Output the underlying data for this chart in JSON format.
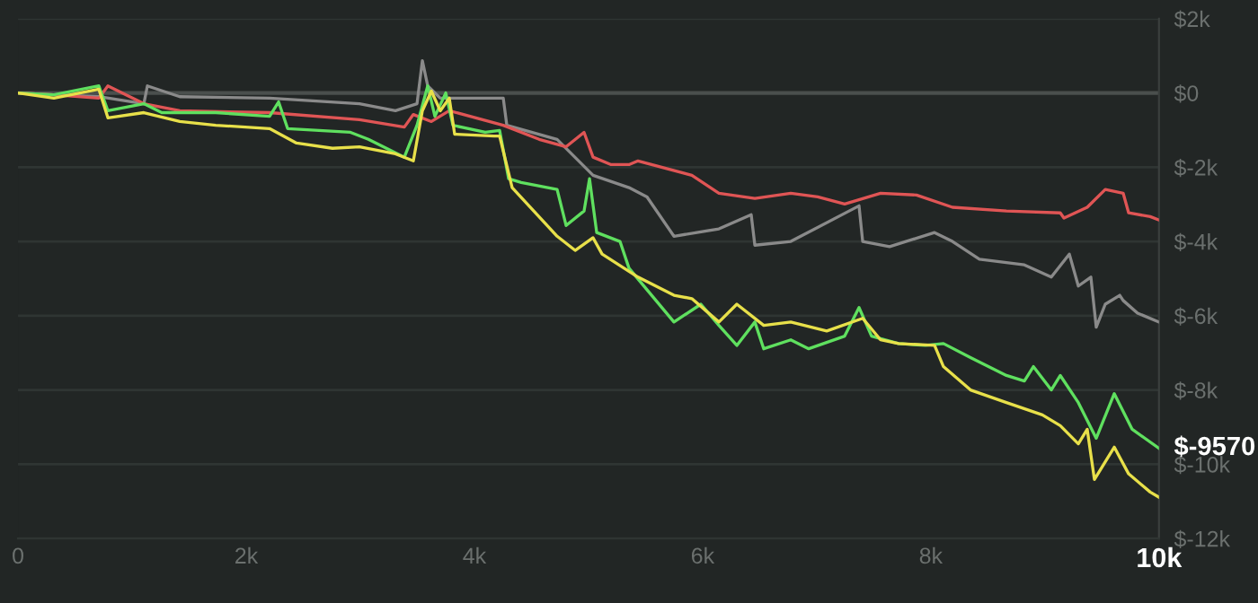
{
  "chart_data": {
    "type": "line",
    "xlim": [
      0,
      10000
    ],
    "ylim": [
      -12000,
      2000
    ],
    "xticks": [
      0,
      {
        "value": 2000,
        "label": "2k"
      },
      {
        "value": 4000,
        "label": "4k"
      },
      {
        "value": 6000,
        "label": "6k"
      },
      {
        "value": 8000,
        "label": "8k"
      },
      {
        "value": 10000,
        "label": "10k"
      }
    ],
    "yticks": [
      {
        "value": -12000,
        "label": "$-12k"
      },
      {
        "value": -10000,
        "label": "$-10k"
      },
      {
        "value": -8000,
        "label": "$-8k"
      },
      {
        "value": -6000,
        "label": "$-6k"
      },
      {
        "value": -4000,
        "label": "$-4k"
      },
      {
        "value": -2000,
        "label": "$-2k"
      },
      {
        "value": 0,
        "label": "$0"
      },
      {
        "value": 2000,
        "label": "$2k"
      }
    ],
    "grid": "y",
    "ref_lines": [
      {
        "axis": "y",
        "value": 0,
        "color": "#4a4f4d"
      }
    ],
    "annotations": [
      {
        "text": "$-9570",
        "x": 10000,
        "y": -9570
      }
    ],
    "series": [
      {
        "color": "#8a8a8a",
        "x": [
          0,
          315,
          709,
          1103,
          1134,
          1418,
          2205,
          2993,
          3308,
          3497,
          3544,
          3591,
          3701,
          3859,
          4253,
          4284,
          4725,
          5040,
          5355,
          5513,
          5749,
          6143,
          6426,
          6458,
          6773,
          7371,
          7403,
          7639,
          8033,
          8190,
          8426,
          8820,
          9056,
          9214,
          9293,
          9403,
          9450,
          9529,
          9656,
          9686,
          9812,
          10000
        ],
        "values": [
          0,
          -50,
          -100,
          -290,
          190,
          -100,
          -140,
          -290,
          -480,
          -290,
          870,
          190,
          -140,
          -140,
          -140,
          -870,
          -1250,
          -2220,
          -2550,
          -2800,
          -3860,
          -3660,
          -3280,
          -4100,
          -4000,
          -3040,
          -4000,
          -4140,
          -3760,
          -4000,
          -4480,
          -4630,
          -4960,
          -4340,
          -5200,
          -4960,
          -6310,
          -5690,
          -5450,
          -5590,
          -5930,
          -6170
        ]
      },
      {
        "color": "#e05555",
        "x": [
          0,
          315,
          709,
          788,
          1103,
          1418,
          2205,
          2993,
          3386,
          3465,
          3623,
          3780,
          4253,
          4568,
          4804,
          4961,
          5040,
          5198,
          5355,
          5434,
          5906,
          6143,
          6458,
          6773,
          7009,
          7245,
          7560,
          7875,
          8190,
          8663,
          9135,
          9167,
          9371,
          9529,
          9686,
          9734,
          9923,
          10000
        ],
        "values": [
          0,
          -50,
          -140,
          190,
          -290,
          -480,
          -530,
          -720,
          -920,
          -580,
          -770,
          -480,
          -870,
          -1250,
          -1450,
          -1060,
          -1730,
          -1930,
          -1930,
          -1830,
          -2220,
          -2700,
          -2840,
          -2700,
          -2800,
          -2990,
          -2700,
          -2750,
          -3080,
          -3180,
          -3230,
          -3370,
          -3080,
          -2600,
          -2700,
          -3230,
          -3330,
          -3420
        ]
      },
      {
        "color": "#5fe05f",
        "x": [
          0,
          315,
          709,
          788,
          1103,
          1260,
          1733,
          2205,
          2284,
          2363,
          2914,
          3071,
          3386,
          3497,
          3591,
          3654,
          3749,
          3812,
          4095,
          4221,
          4300,
          4410,
          4725,
          4804,
          4961,
          5009,
          5072,
          5276,
          5355,
          5749,
          5985,
          6143,
          6300,
          6458,
          6536,
          6773,
          6930,
          7245,
          7371,
          7481,
          7718,
          7954,
          8111,
          8348,
          8663,
          8820,
          8899,
          9056,
          9135,
          9293,
          9450,
          9608,
          9765,
          10000
        ],
        "values": [
          0,
          -50,
          190,
          -480,
          -290,
          -530,
          -530,
          -630,
          -240,
          -960,
          -1060,
          -1250,
          -1730,
          -870,
          190,
          -630,
          0,
          -870,
          -1060,
          -1010,
          -2310,
          -2410,
          -2600,
          -3570,
          -3180,
          -2310,
          -3760,
          -4000,
          -4720,
          -6170,
          -5690,
          -6260,
          -6800,
          -6170,
          -6890,
          -6650,
          -6890,
          -6550,
          -5780,
          -6550,
          -6750,
          -6800,
          -6750,
          -7130,
          -7610,
          -7760,
          -7370,
          -8000,
          -7610,
          -8340,
          -9300,
          -8100,
          -9060,
          -9570
        ]
      },
      {
        "color": "#e8e04a",
        "x": [
          0,
          315,
          709,
          788,
          1103,
          1418,
          1733,
          2205,
          2441,
          2756,
          2993,
          3308,
          3465,
          3544,
          3623,
          3701,
          3780,
          3827,
          4174,
          4221,
          4331,
          4725,
          4883,
          5040,
          5119,
          5434,
          5749,
          5906,
          6143,
          6300,
          6536,
          6773,
          7088,
          7403,
          7560,
          7718,
          8033,
          8111,
          8348,
          8663,
          8978,
          9135,
          9293,
          9371,
          9434,
          9608,
          9734,
          9923,
          10000
        ],
        "values": [
          0,
          -140,
          100,
          -670,
          -530,
          -770,
          -870,
          -960,
          -1350,
          -1490,
          -1450,
          -1640,
          -1830,
          -480,
          50,
          -480,
          -140,
          -1110,
          -1160,
          -1160,
          -2550,
          -3860,
          -4240,
          -3900,
          -4340,
          -4960,
          -5450,
          -5540,
          -6170,
          -5690,
          -6260,
          -6170,
          -6410,
          -6070,
          -6650,
          -6750,
          -6800,
          -7370,
          -8000,
          -8340,
          -8670,
          -8960,
          -9450,
          -9060,
          -10410,
          -9540,
          -10260,
          -10750,
          -10890
        ]
      }
    ]
  }
}
